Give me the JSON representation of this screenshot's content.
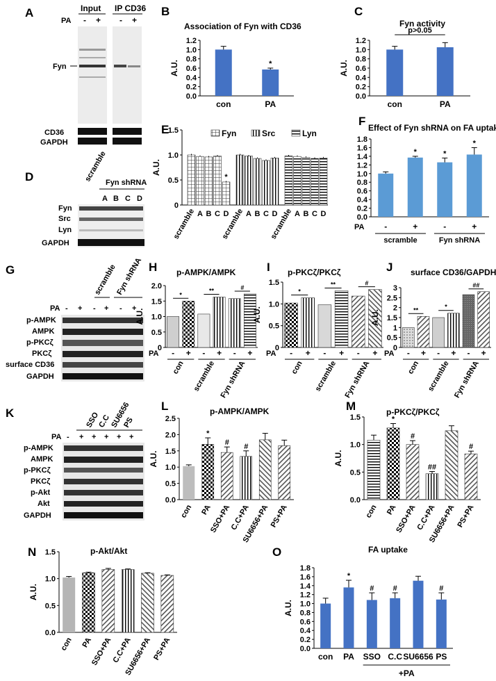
{
  "panels": {
    "A": {
      "letter": "A",
      "col1": "Input",
      "col2": "IP CD36",
      "pa": "PA",
      "lanes": [
        "-",
        "+",
        "-",
        "+"
      ],
      "rows": [
        "Fyn",
        "CD36",
        "GAPDH"
      ]
    },
    "D": {
      "letter": "D",
      "top": "scramble",
      "group": "Fyn shRNA",
      "lanes": [
        "A",
        "B",
        "C",
        "D"
      ],
      "rows": [
        "Fyn",
        "Src",
        "Lyn",
        "GAPDH"
      ]
    },
    "G": {
      "letter": "G",
      "scramble": "scramble",
      "fyn": "Fyn shRNA",
      "pa": "PA",
      "lanes": [
        "-",
        "+",
        "-",
        "+",
        "-",
        "+"
      ],
      "rows": [
        "p-AMPK",
        "AMPK",
        "p-PKCζ",
        "PKCζ",
        "surface CD36",
        "GAPDH"
      ]
    },
    "K": {
      "letter": "K",
      "treat": [
        "SSO",
        "C.C",
        "SU6656",
        "PS"
      ],
      "pa": "PA",
      "lanes": [
        "-",
        "+",
        "+",
        "+",
        "+",
        "+"
      ],
      "rows": [
        "p-AMPK",
        "AMPK",
        "p-PKCζ",
        "PKCζ",
        "p-Akt",
        "Akt",
        "GAPDH"
      ]
    }
  },
  "chart_data": [
    {
      "id": "B",
      "type": "bar",
      "title": "Association of Fyn with CD36",
      "ylabel": "A.U.",
      "ylim": [
        0,
        1.2
      ],
      "yticks": [
        "0.0",
        "0.2",
        "0.4",
        "0.6",
        "0.8",
        "1.0",
        "1.2"
      ],
      "categories": [
        "con",
        "PA"
      ],
      "values": [
        1.0,
        0.57
      ],
      "errors": [
        0.07,
        0.03
      ],
      "marks": [
        "",
        "*"
      ]
    },
    {
      "id": "C",
      "type": "bar",
      "title": "Fyn activity",
      "ylabel": "A.U.",
      "ylim": [
        0,
        1.2
      ],
      "yticks": [
        "0.0",
        "0.2",
        "0.4",
        "0.6",
        "0.8",
        "1.0",
        "1.2"
      ],
      "categories": [
        "con",
        "PA"
      ],
      "values": [
        1.0,
        1.05
      ],
      "errors": [
        0.07,
        0.1
      ],
      "marks": [
        "",
        ""
      ],
      "annotation": "p>0.05"
    },
    {
      "id": "E",
      "type": "bar",
      "ylabel": "A.U.",
      "ylim": [
        0,
        1.5
      ],
      "yticks": [
        "0",
        "0.5",
        "1.0",
        "1.5"
      ],
      "legend": [
        "Fyn",
        "Src",
        "Lyn"
      ],
      "groups": [
        "scramble",
        "A",
        "B",
        "C",
        "D"
      ],
      "series": [
        {
          "name": "Fyn",
          "values": [
            1.0,
            0.97,
            0.96,
            0.98,
            0.46
          ]
        },
        {
          "name": "Src",
          "values": [
            1.0,
            0.98,
            0.93,
            0.89,
            0.94
          ]
        },
        {
          "name": "Lyn",
          "values": [
            0.98,
            0.97,
            0.95,
            0.93,
            0.94
          ]
        }
      ],
      "marks": [
        "*"
      ]
    },
    {
      "id": "F",
      "type": "bar",
      "title": "Effect of Fyn shRNA on FA uptake",
      "ylabel": "",
      "ylim": [
        0,
        1.8
      ],
      "yticks": [
        "0.0",
        "0.2",
        "0.4",
        "0.6",
        "0.8",
        "1.0",
        "1.2",
        "1.4",
        "1.6",
        "1.8"
      ],
      "pa": "PA",
      "categories": [
        "-",
        "+",
        "-",
        "+"
      ],
      "groups": [
        "scramble",
        "Fyn shRNA"
      ],
      "values": [
        1.0,
        1.37,
        1.26,
        1.44
      ],
      "errors": [
        0.04,
        0.03,
        0.1,
        0.16
      ],
      "marks": [
        "",
        "*",
        "*",
        "*"
      ]
    },
    {
      "id": "H",
      "type": "bar",
      "title": "p-AMPK/AMPK",
      "ylabel": "A.U.",
      "ylim": [
        0,
        2.0
      ],
      "yticks": [
        "0",
        "0.5",
        "1.0",
        "1.5",
        "2.0"
      ],
      "pa": "PA",
      "categories": [
        "-",
        "+",
        "-",
        "+",
        "-",
        "+"
      ],
      "groups": [
        "con",
        "scramble",
        "Fyn shRNA"
      ],
      "values": [
        1.0,
        1.5,
        1.08,
        1.63,
        1.58,
        1.73
      ],
      "marks": [
        "*",
        "**",
        "#"
      ]
    },
    {
      "id": "I",
      "type": "bar",
      "title": "p-PKCζ/PKCζ",
      "ylabel": "A.U.",
      "ylim": [
        0,
        1.5
      ],
      "yticks": [
        "0",
        "0.5",
        "1.0",
        "1.5"
      ],
      "pa": "PA",
      "categories": [
        "-",
        "+",
        "-",
        "+",
        "-",
        "+"
      ],
      "groups": [
        "con",
        "scramble",
        "Fyn shRNA"
      ],
      "values": [
        1.02,
        1.14,
        0.98,
        1.3,
        1.18,
        1.33
      ],
      "marks": [
        "*",
        "**",
        "#"
      ]
    },
    {
      "id": "J",
      "type": "bar",
      "title": "surface CD36/GAPDH",
      "ylabel": "A.U.",
      "ylim": [
        0,
        3
      ],
      "yticks": [
        "0",
        "0.5",
        "1",
        "1.5",
        "2",
        "2.5",
        "3"
      ],
      "pa": "PA",
      "categories": [
        "-",
        "+",
        "-",
        "+",
        "-",
        "+"
      ],
      "groups": [
        "con",
        "scramble",
        "Fyn shRNA"
      ],
      "values": [
        1.0,
        1.56,
        1.5,
        1.72,
        2.65,
        2.8
      ],
      "marks": [
        "**",
        "*",
        "##"
      ]
    },
    {
      "id": "L",
      "type": "bar",
      "title": "p-AMPK/AMPK",
      "ylabel": "A.U.",
      "ylim": [
        0,
        2.5
      ],
      "yticks": [
        "0.0",
        "0.5",
        "1.0",
        "1.5",
        "2.0",
        "2.5"
      ],
      "categories": [
        "con",
        "PA",
        "SSO+PA",
        "C.C+PA",
        "SU6656+PA",
        "PS+PA"
      ],
      "values": [
        1.03,
        1.7,
        1.45,
        1.33,
        1.84,
        1.66
      ],
      "errors": [
        0.04,
        0.2,
        0.17,
        0.17,
        0.2,
        0.17
      ],
      "marks": [
        "",
        "*",
        "#",
        "#",
        "",
        ""
      ]
    },
    {
      "id": "M",
      "type": "bar",
      "title": "p-PKCζ/PKCζ",
      "ylabel": "A.U.",
      "ylim": [
        0,
        1.5
      ],
      "yticks": [
        "0.0",
        "0.5",
        "1.0",
        "1.5"
      ],
      "categories": [
        "con",
        "PA",
        "SSO+PA",
        "C.C+PA",
        "SU6656+PA",
        "PS+PA"
      ],
      "values": [
        1.08,
        1.3,
        1.0,
        0.47,
        1.25,
        0.83
      ],
      "errors": [
        0.09,
        0.08,
        0.07,
        0.04,
        0.09,
        0.05
      ],
      "marks": [
        "",
        "*",
        "#",
        "##",
        "",
        "#"
      ]
    },
    {
      "id": "N",
      "type": "bar",
      "title": "p-Akt/Akt",
      "ylabel": "A.U.",
      "ylim": [
        0,
        1.5
      ],
      "yticks": [
        "0.0",
        "0.5",
        "1.0",
        "1.5"
      ],
      "categories": [
        "con",
        "PA",
        "SSO+PA",
        "C.C+PA",
        "SU6656+PA",
        "PS+PA"
      ],
      "values": [
        1.02,
        1.11,
        1.17,
        1.17,
        1.1,
        1.06
      ],
      "errors": [
        0.02,
        0.01,
        0.02,
        0.01,
        0.01,
        0.01
      ],
      "marks": [
        "",
        "",
        "",
        "",
        "",
        ""
      ]
    },
    {
      "id": "O",
      "type": "bar",
      "title": "FA uptake",
      "ylabel": "A.U.",
      "ylim": [
        0,
        1.8
      ],
      "yticks": [
        "0.0",
        "0.2",
        "0.4",
        "0.6",
        "0.8",
        "1.0",
        "1.2",
        "1.4",
        "1.6",
        "1.8"
      ],
      "categories": [
        "con",
        "PA",
        "SSO",
        "C.C",
        "SU6656",
        "PS"
      ],
      "group_label": "+PA",
      "values": [
        1.0,
        1.36,
        1.08,
        1.12,
        1.51,
        1.09
      ],
      "errors": [
        0.12,
        0.16,
        0.16,
        0.12,
        0.1,
        0.15
      ],
      "marks": [
        "",
        "*",
        "#",
        "#",
        "",
        "#"
      ]
    }
  ],
  "colors": {
    "bar_blue": "#4472C4",
    "bar_light_blue": "#5B9BD5",
    "ink": "#000000",
    "blot_bg": "#eeeeee"
  }
}
